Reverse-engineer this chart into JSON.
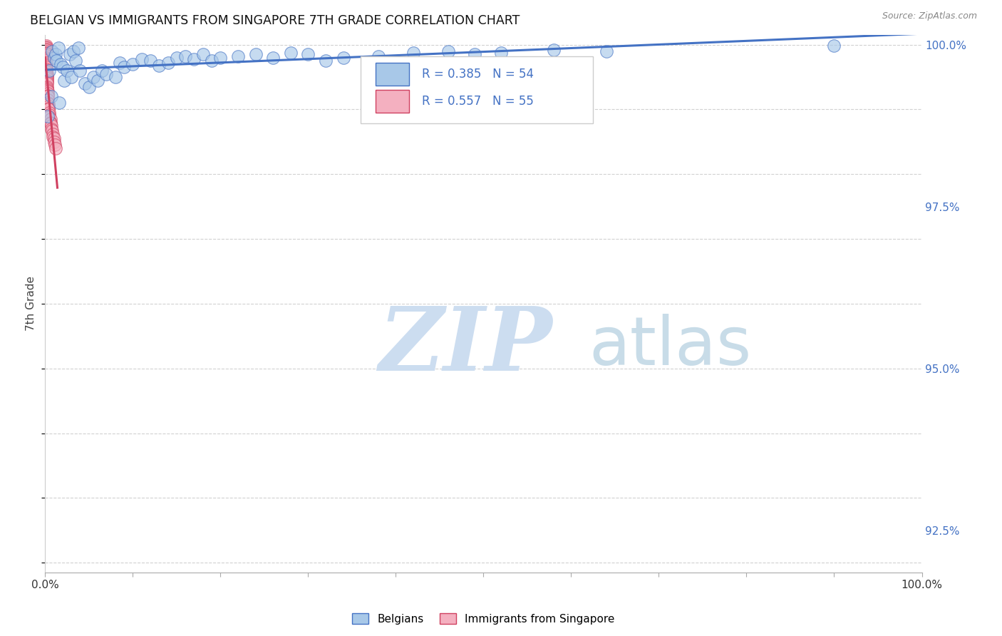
{
  "title": "BELGIAN VS IMMIGRANTS FROM SINGAPORE 7TH GRADE CORRELATION CHART",
  "source": "Source: ZipAtlas.com",
  "ylabel": "7th Grade",
  "ylabel_right_ticks": [
    "100.0%",
    "97.5%",
    "95.0%",
    "92.5%"
  ],
  "ylabel_right_values": [
    1.0,
    0.975,
    0.95,
    0.925
  ],
  "legend_label_blue": "Belgians",
  "legend_label_pink": "Immigrants from Singapore",
  "r_blue": 0.385,
  "n_blue": 54,
  "r_pink": 0.557,
  "n_pink": 55,
  "blue_color": "#a8c8e8",
  "pink_color": "#f4b0c0",
  "trendline_blue": "#4472c4",
  "trendline_pink": "#d04060",
  "blue_scatter_x": [
    0.003,
    0.005,
    0.007,
    0.008,
    0.01,
    0.012,
    0.013,
    0.015,
    0.016,
    0.018,
    0.02,
    0.022,
    0.025,
    0.028,
    0.03,
    0.032,
    0.035,
    0.038,
    0.04,
    0.045,
    0.05,
    0.055,
    0.06,
    0.065,
    0.07,
    0.08,
    0.085,
    0.09,
    0.1,
    0.11,
    0.12,
    0.13,
    0.14,
    0.15,
    0.16,
    0.17,
    0.18,
    0.19,
    0.2,
    0.22,
    0.24,
    0.26,
    0.28,
    0.3,
    0.32,
    0.34,
    0.38,
    0.42,
    0.46,
    0.49,
    0.52,
    0.58,
    0.64,
    0.9
  ],
  "blue_scatter_y": [
    0.989,
    0.996,
    0.992,
    0.999,
    0.998,
    0.9985,
    0.9975,
    0.9995,
    0.991,
    0.997,
    0.9965,
    0.9945,
    0.996,
    0.9985,
    0.995,
    0.999,
    0.9975,
    0.9995,
    0.996,
    0.994,
    0.9935,
    0.995,
    0.9945,
    0.996,
    0.9955,
    0.995,
    0.9972,
    0.9965,
    0.997,
    0.9978,
    0.9975,
    0.9968,
    0.9972,
    0.998,
    0.9982,
    0.9978,
    0.9985,
    0.9975,
    0.998,
    0.9982,
    0.9985,
    0.998,
    0.9988,
    0.9985,
    0.9975,
    0.998,
    0.9982,
    0.9988,
    0.999,
    0.9985,
    0.9988,
    0.9992,
    0.999,
    0.9998
  ],
  "pink_scatter_x": [
    0.001,
    0.001,
    0.001,
    0.001,
    0.001,
    0.001,
    0.001,
    0.001,
    0.001,
    0.001,
    0.001,
    0.001,
    0.001,
    0.001,
    0.001,
    0.001,
    0.001,
    0.001,
    0.001,
    0.001,
    0.002,
    0.002,
    0.002,
    0.002,
    0.002,
    0.002,
    0.002,
    0.002,
    0.002,
    0.002,
    0.003,
    0.003,
    0.003,
    0.003,
    0.003,
    0.003,
    0.004,
    0.004,
    0.004,
    0.004,
    0.005,
    0.005,
    0.005,
    0.006,
    0.006,
    0.006,
    0.007,
    0.007,
    0.008,
    0.009,
    0.009,
    0.01,
    0.01,
    0.011,
    0.012
  ],
  "pink_scatter_y": [
    0.9998,
    0.9996,
    0.9995,
    0.9993,
    0.9992,
    0.999,
    0.9988,
    0.9986,
    0.9985,
    0.9983,
    0.998,
    0.9978,
    0.9975,
    0.9972,
    0.997,
    0.9968,
    0.9965,
    0.9962,
    0.996,
    0.9958,
    0.9955,
    0.9952,
    0.995,
    0.9948,
    0.9945,
    0.9942,
    0.994,
    0.9935,
    0.9932,
    0.993,
    0.9928,
    0.9925,
    0.9922,
    0.992,
    0.9915,
    0.991,
    0.9908,
    0.9905,
    0.9902,
    0.99,
    0.9895,
    0.9892,
    0.9888,
    0.9885,
    0.988,
    0.9878,
    0.9875,
    0.987,
    0.9868,
    0.9862,
    0.9858,
    0.9855,
    0.985,
    0.9845,
    0.984
  ],
  "xlim": [
    0.0,
    1.0
  ],
  "ylim": [
    0.9185,
    1.0015
  ],
  "background_color": "#ffffff",
  "watermark_zip": "ZIP",
  "watermark_atlas": "atlas",
  "watermark_color_zip": "#ccddf0",
  "watermark_color_atlas": "#c8dce8",
  "grid_color": "#cccccc",
  "xtick_positions": [
    0.0,
    0.1,
    0.2,
    0.3,
    0.4,
    0.5,
    0.6,
    0.7,
    0.8,
    0.9,
    1.0
  ]
}
